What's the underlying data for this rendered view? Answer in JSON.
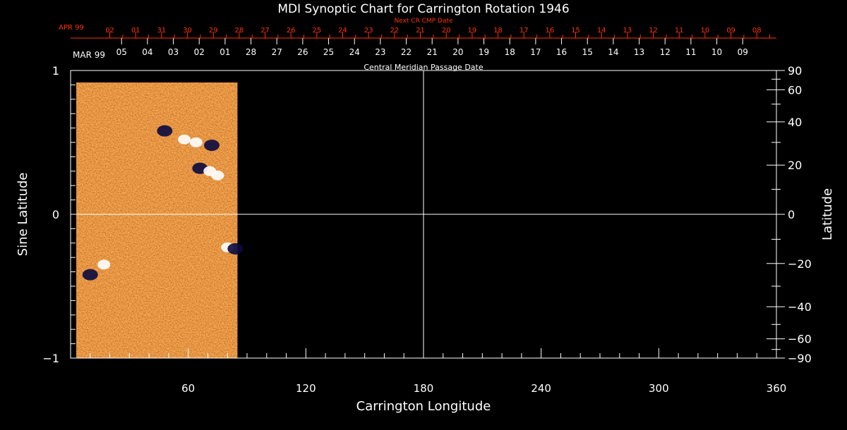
{
  "chart_data": {
    "type": "heatmap",
    "title": "MDI Synoptic Chart for Carrington Rotation 1946",
    "xlabel": "Carrington Longitude",
    "ylabel_left": "Sine Latitude",
    "ylabel_right": "Latitude",
    "xlim": [
      0,
      360
    ],
    "ylim": [
      -1,
      1
    ],
    "x_ticks": [
      60,
      120,
      180,
      240,
      300,
      360
    ],
    "x_minor_step": 10,
    "y_left_ticks": [
      {
        "value": 1,
        "label": "1"
      },
      {
        "value": 0,
        "label": "0"
      },
      {
        "value": -1,
        "label": "−1"
      }
    ],
    "y_left_minor_step": 0.1,
    "y_right_ticks": [
      {
        "deg": 90,
        "label": "90"
      },
      {
        "deg": 60,
        "label": "60"
      },
      {
        "deg": 40,
        "label": "40"
      },
      {
        "deg": 20,
        "label": "20"
      },
      {
        "deg": 0,
        "label": "0"
      },
      {
        "deg": -20,
        "label": "−20"
      },
      {
        "deg": -40,
        "label": "−40"
      },
      {
        "deg": -60,
        "label": "−60"
      },
      {
        "deg": -90,
        "label": "−90"
      }
    ],
    "y_right_minor_deg": [
      70,
      50,
      30,
      10,
      -10,
      -30,
      -50,
      -70
    ],
    "grid_lines": {
      "x": [
        180
      ],
      "y": [
        0
      ]
    },
    "data_coverage_longitude": [
      3,
      85
    ],
    "colors": {
      "axes": "#ffffff",
      "date_axis_top": "#ff3300",
      "magnetogram_base": "#e06010",
      "positive_polarity": "#ffffff",
      "negative_polarity": "#0a0a40"
    },
    "magnetic_regions": [
      {
        "lon": 48,
        "sinlat": 0.58,
        "polarity": "negative"
      },
      {
        "lon": 58,
        "sinlat": 0.52,
        "polarity": "positive"
      },
      {
        "lon": 64,
        "sinlat": 0.5,
        "polarity": "positive"
      },
      {
        "lon": 72,
        "sinlat": 0.48,
        "polarity": "negative"
      },
      {
        "lon": 66,
        "sinlat": 0.32,
        "polarity": "negative"
      },
      {
        "lon": 71,
        "sinlat": 0.3,
        "polarity": "positive"
      },
      {
        "lon": 75,
        "sinlat": 0.27,
        "polarity": "positive"
      },
      {
        "lon": 10,
        "sinlat": -0.42,
        "polarity": "negative"
      },
      {
        "lon": 17,
        "sinlat": -0.35,
        "polarity": "positive"
      },
      {
        "lon": 80,
        "sinlat": -0.23,
        "polarity": "positive"
      },
      {
        "lon": 84,
        "sinlat": -0.24,
        "polarity": "negative"
      }
    ],
    "next_cr_axis": {
      "label": "Next CR CMP Date",
      "month_label": "APR 99",
      "dates": [
        "02",
        "01",
        "31",
        "30",
        "29",
        "28",
        "27",
        "26",
        "25",
        "24",
        "23",
        "22",
        "21",
        "20",
        "19",
        "18",
        "17",
        "16",
        "15",
        "14",
        "13",
        "12",
        "11",
        "10",
        "09",
        "08"
      ],
      "first_date_lon": 20,
      "step_deg": 13.2
    },
    "cmp_axis": {
      "label": "Central Meridian Passage Date",
      "month_label": "MAR 99",
      "dates": [
        "05",
        "04",
        "03",
        "02",
        "01",
        "28",
        "27",
        "26",
        "25",
        "24",
        "23",
        "22",
        "21",
        "20",
        "19",
        "18",
        "17",
        "16",
        "15",
        "14",
        "13",
        "12",
        "11",
        "10",
        "09"
      ],
      "first_date_lon": 26,
      "step_deg": 13.2
    }
  }
}
